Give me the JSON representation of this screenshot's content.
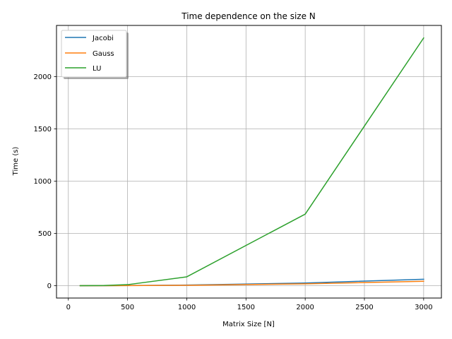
{
  "chart_data": {
    "type": "line",
    "title": "Time dependence on the size N",
    "xlabel": "Matrix Size [N]",
    "ylabel": "Time (s)",
    "xlim": [
      -100,
      3150
    ],
    "ylim": [
      -118,
      2490
    ],
    "xticks": [
      0,
      500,
      1000,
      1500,
      2000,
      2500,
      3000
    ],
    "yticks": [
      0,
      500,
      1000,
      1500,
      2000
    ],
    "grid": true,
    "legend_position": "top-left",
    "x": [
      100,
      300,
      500,
      1000,
      2000,
      3000
    ],
    "series": [
      {
        "name": "Jacobi",
        "color": "#1f77b4",
        "values": [
          0.05,
          0.5,
          1.5,
          6,
          26,
          62
        ]
      },
      {
        "name": "Gauss",
        "color": "#ff7f0e",
        "values": [
          0.03,
          0.3,
          1,
          4,
          18,
          42
        ]
      },
      {
        "name": "LU",
        "color": "#2ca02c",
        "values": [
          0.1,
          2,
          10,
          85,
          685,
          2370
        ]
      }
    ]
  }
}
